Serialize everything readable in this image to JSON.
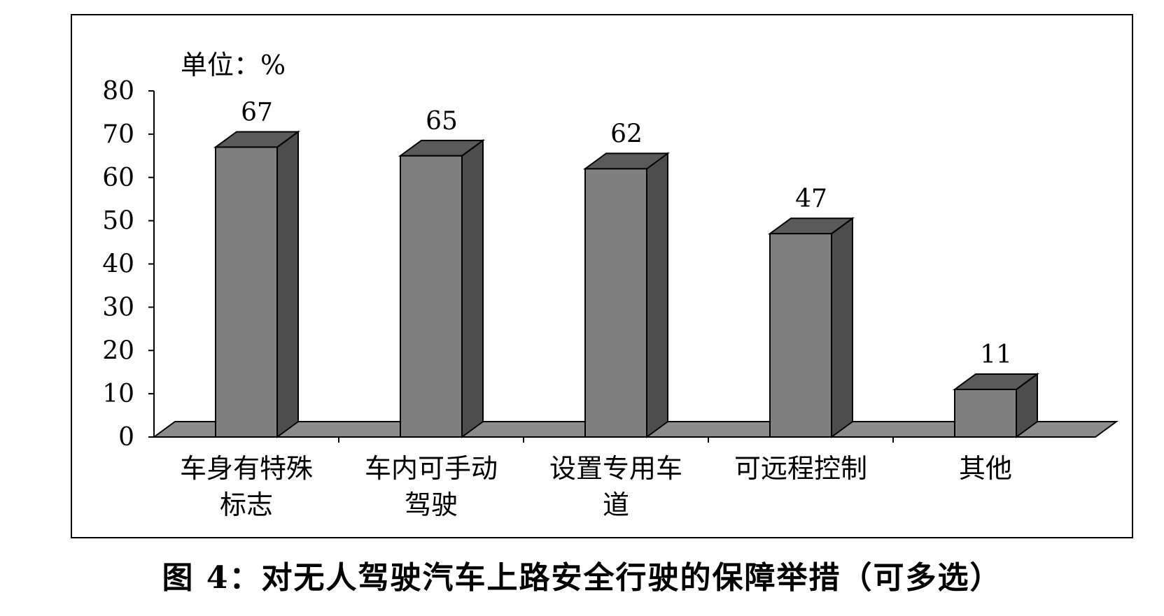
{
  "caption": "图 4：对无人驾驶汽车上路安全行驶的保障举措（可多选）",
  "chart_data": {
    "type": "bar",
    "unit_label": "单位：%",
    "categories": [
      [
        "车身有特殊",
        "标志"
      ],
      [
        "车内可手动",
        "驾驶"
      ],
      [
        "设置专用车",
        "道"
      ],
      [
        "可远程控制"
      ],
      [
        "其他"
      ]
    ],
    "values": [
      67,
      65,
      62,
      47,
      11
    ],
    "data_labels": [
      "67",
      "65",
      "62",
      "47",
      "11"
    ],
    "ylim": [
      0,
      80
    ],
    "yticks": [
      0,
      10,
      20,
      30,
      40,
      50,
      60,
      70,
      80
    ],
    "colors": {
      "bar_front": "#7f7f7f",
      "bar_side": "#4d4d4d",
      "bar_top": "#5a5a5a",
      "floor": "#8c8c8c"
    },
    "three_d": true,
    "grid": false,
    "legend": "none"
  }
}
